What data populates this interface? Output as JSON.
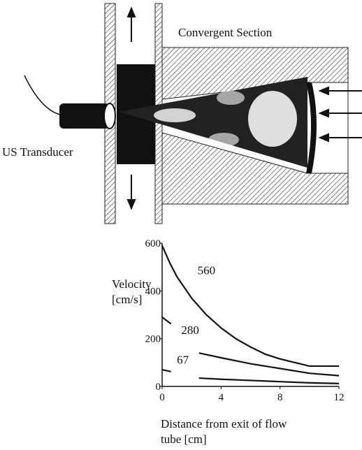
{
  "diagram": {
    "transducer_label": "US Transducer",
    "section_label": "Convergent Section"
  },
  "chart_data": {
    "type": "line",
    "ylabel": [
      "Velocity",
      "[cm/s]"
    ],
    "xlabel": [
      "Distance from exit of flow",
      "tube [cm]"
    ],
    "xlim": [
      0,
      12
    ],
    "ylim": [
      0,
      600
    ],
    "xticks": [
      0,
      4,
      8,
      12
    ],
    "yticks": [
      0,
      200,
      400,
      600
    ],
    "series": [
      {
        "name": "560",
        "color": "#111111",
        "x": [
          0,
          0.5,
          1,
          2,
          3,
          4,
          5,
          6,
          7,
          8,
          9,
          10,
          12
        ],
        "values": [
          590,
          520,
          460,
          370,
          300,
          245,
          200,
          165,
          135,
          115,
          100,
          85,
          85
        ]
      },
      {
        "name": "280",
        "color": "#111111",
        "x": [
          0,
          0.6,
          1,
          2.5,
          4,
          6,
          8,
          10,
          12
        ],
        "values": [
          290,
          262,
          null,
          140,
          120,
          95,
          75,
          55,
          45
        ]
      },
      {
        "name": "67",
        "color": "#111111",
        "x": [
          0,
          0.6,
          1,
          2.5,
          4,
          6,
          8,
          10,
          12
        ],
        "values": [
          70,
          62,
          null,
          35,
          30,
          25,
          20,
          15,
          12
        ]
      }
    ]
  }
}
